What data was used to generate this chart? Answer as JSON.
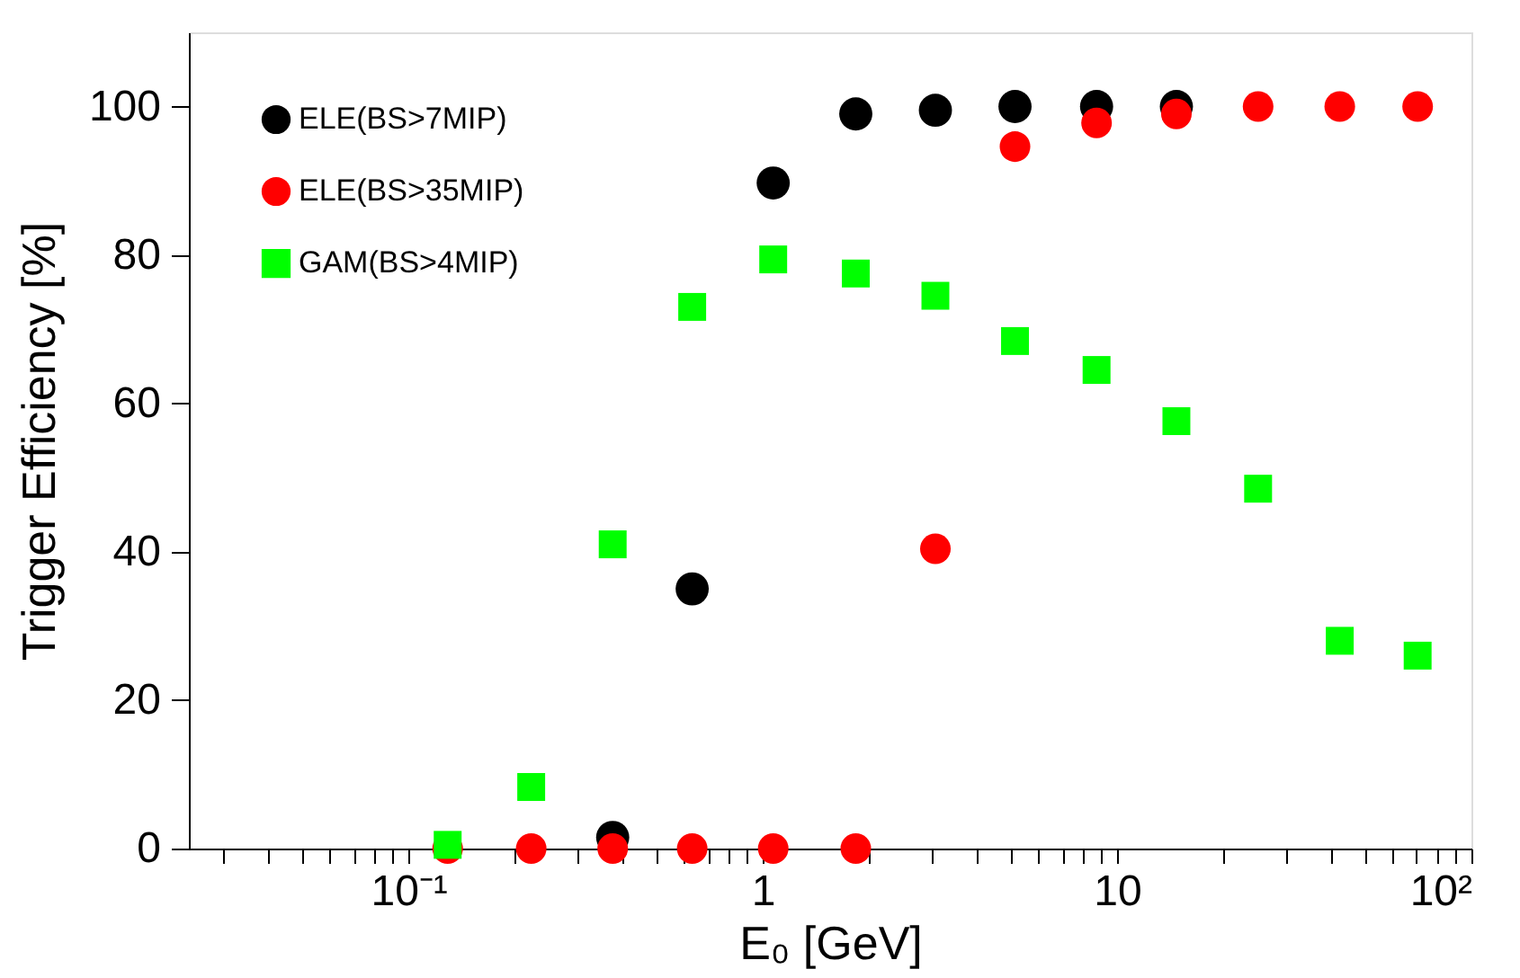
{
  "chart_data": {
    "type": "scatter",
    "xlabel": "E₀ [GeV]",
    "ylabel": "Trigger Efficiency [%]",
    "x": [
      0.129,
      0.222,
      0.377,
      0.632,
      1.07,
      1.83,
      3.07,
      5.15,
      8.75,
      14.7,
      25,
      42.5,
      70.5
    ],
    "series": [
      {
        "name": "ELE(BS>7MIP)",
        "color": "#000000",
        "marker": "circle",
        "values": [
          null,
          null,
          1.5,
          35,
          89.7,
          99,
          99.5,
          100,
          100,
          100,
          null,
          null,
          null
        ]
      },
      {
        "name": "ELE(BS>35MIP)",
        "color": "#ff0000",
        "marker": "circle",
        "values": [
          0,
          0,
          0,
          0,
          0,
          0,
          40.4,
          94.6,
          97.8,
          99,
          100,
          100,
          100
        ]
      },
      {
        "name": "GAM(BS>4MIP)",
        "color": "#00ff00",
        "marker": "square",
        "values": [
          0.5,
          8.3,
          41,
          73,
          79.4,
          77.5,
          74.5,
          68.4,
          64.5,
          57.6,
          48.5,
          28,
          26
        ]
      }
    ],
    "log": "x",
    "xlim": [
      0.024,
      100
    ],
    "ylim": [
      0,
      110
    ],
    "xticks": [
      {
        "value": 0.03,
        "label": null
      },
      {
        "value": 0.04,
        "label": null
      },
      {
        "value": 0.05,
        "label": null
      },
      {
        "value": 0.06,
        "label": null
      },
      {
        "value": 0.07,
        "label": null
      },
      {
        "value": 0.08,
        "label": null
      },
      {
        "value": 0.09,
        "label": null
      },
      {
        "value": 0.1,
        "label": "10⁻¹"
      },
      {
        "value": 0.2,
        "label": null
      },
      {
        "value": 0.3,
        "label": null
      },
      {
        "value": 0.4,
        "label": null
      },
      {
        "value": 0.5,
        "label": null
      },
      {
        "value": 0.6,
        "label": null
      },
      {
        "value": 0.7,
        "label": null
      },
      {
        "value": 0.8,
        "label": null
      },
      {
        "value": 0.9,
        "label": null
      },
      1,
      {
        "value": 2,
        "label": null
      },
      {
        "value": 3,
        "label": null
      },
      {
        "value": 4,
        "label": null
      },
      {
        "value": 5,
        "label": null
      },
      {
        "value": 6,
        "label": null
      },
      {
        "value": 7,
        "label": null
      },
      {
        "value": 8,
        "label": null
      },
      {
        "value": 9,
        "label": null
      },
      10,
      {
        "value": 20,
        "label": null
      },
      {
        "value": 30,
        "label": null
      },
      {
        "value": 40,
        "label": null
      },
      {
        "value": 50,
        "label": null
      },
      {
        "value": 60,
        "label": null
      },
      {
        "value": 70,
        "label": null
      },
      {
        "value": 80,
        "label": null
      },
      {
        "value": 90,
        "label": null
      },
      {
        "value": 100,
        "label": "10²"
      }
    ],
    "yticks": [
      0,
      20,
      40,
      60,
      80,
      100
    ],
    "grid": false,
    "legend": "top left"
  }
}
